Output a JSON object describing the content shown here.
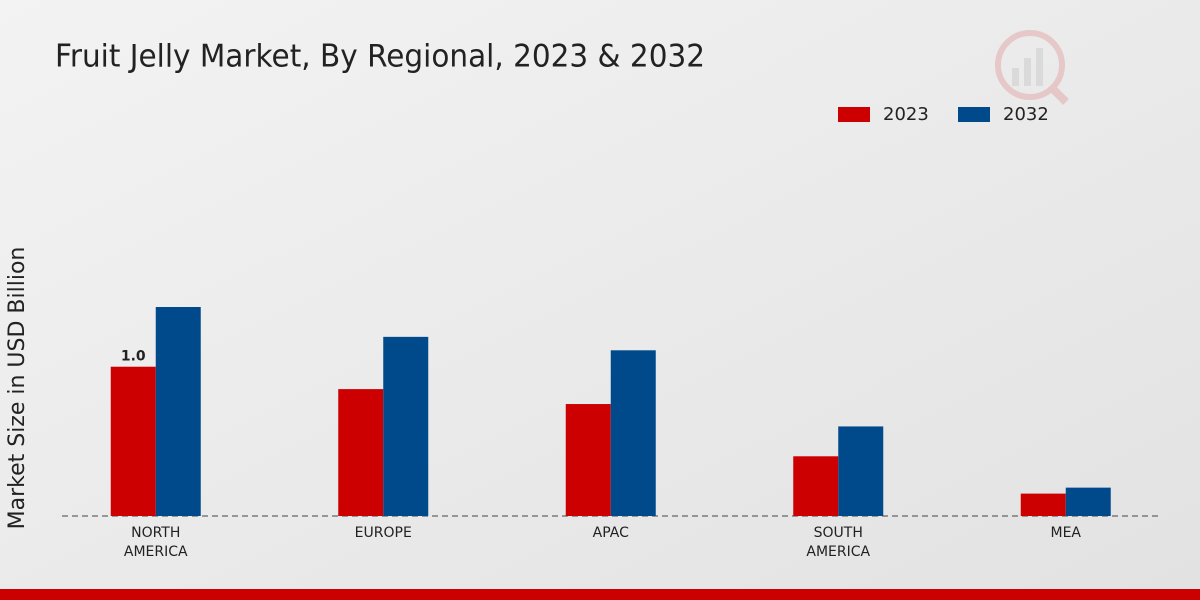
{
  "chart_data": {
    "type": "bar",
    "title": "Fruit Jelly Market, By Regional, 2023 & 2032",
    "y_label": "Market Size in USD Billion",
    "categories": [
      "NORTH AMERICA",
      "EUROPE",
      "APAC",
      "SOUTH AMERICA",
      "MEA"
    ],
    "series": [
      {
        "name": "2023",
        "color": "#cc0000",
        "values": [
          1.0,
          0.85,
          0.75,
          0.4,
          0.15
        ],
        "value_labels": [
          "1.0",
          null,
          null,
          null,
          null
        ]
      },
      {
        "name": "2032",
        "color": "#004a8c",
        "values": [
          1.4,
          1.2,
          1.11,
          0.6,
          0.19
        ]
      }
    ]
  }
}
